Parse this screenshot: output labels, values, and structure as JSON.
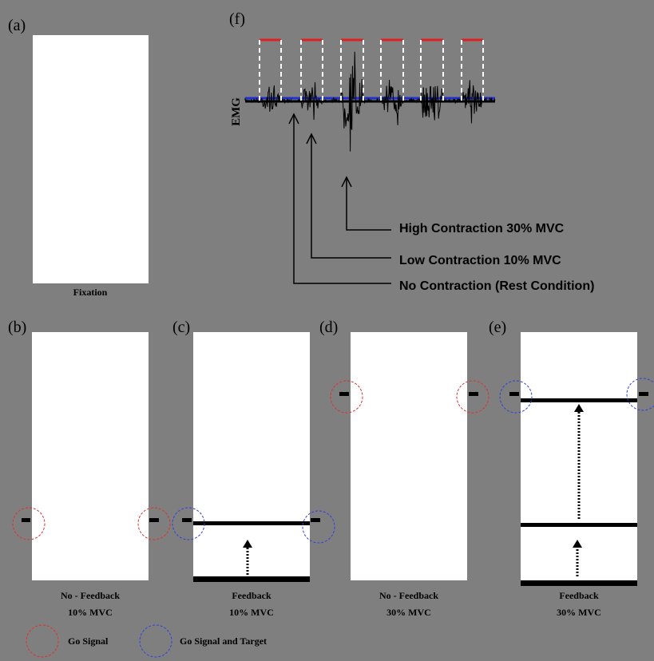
{
  "panel_a": {
    "label": "(a)",
    "caption": "Fixation"
  },
  "panel_f": {
    "label": "(f)",
    "axis_label": "EMG",
    "annotations": [
      "High Contraction 30% MVC",
      "Low Contraction 10% MVC",
      "No Contraction (Rest Condition)"
    ]
  },
  "panels": [
    {
      "label": "(b)",
      "caption": [
        "No - Feedback",
        "10% MVC"
      ]
    },
    {
      "label": "(c)",
      "caption": [
        "Feedback",
        "10% MVC"
      ]
    },
    {
      "label": "(d)",
      "caption": [
        "No - Feedback",
        "30% MVC"
      ]
    },
    {
      "label": "(e)",
      "caption": [
        "Feedback",
        "30% MVC"
      ]
    }
  ],
  "legend": [
    "Go Signal",
    "Go Signal and Target"
  ]
}
